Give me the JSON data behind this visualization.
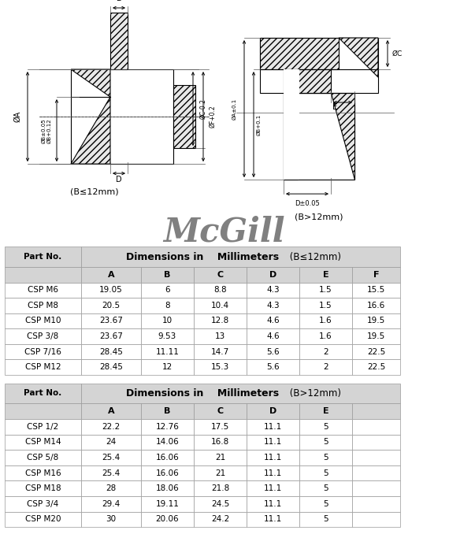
{
  "table1_header_cols": [
    "A",
    "B",
    "C",
    "D",
    "E",
    "F"
  ],
  "table1_title": "Dimensions in    Millimeters",
  "table1_title_suffix": "(B≤12mm)",
  "table1_rows": [
    [
      "CSP M6",
      "19.05",
      "6",
      "8.8",
      "4.3",
      "1.5",
      "15.5"
    ],
    [
      "CSP M8",
      "20.5",
      "8",
      "10.4",
      "4.3",
      "1.5",
      "16.6"
    ],
    [
      "CSP M10",
      "23.67",
      "10",
      "12.8",
      "4.6",
      "1.6",
      "19.5"
    ],
    [
      "CSP 3/8",
      "23.67",
      "9.53",
      "13",
      "4.6",
      "1.6",
      "19.5"
    ],
    [
      "CSP 7/16",
      "28.45",
      "11.11",
      "14.7",
      "5.6",
      "2",
      "22.5"
    ],
    [
      "CSP M12",
      "28.45",
      "12",
      "15.3",
      "5.6",
      "2",
      "22.5"
    ]
  ],
  "table2_header_cols": [
    "A",
    "B",
    "C",
    "D",
    "E",
    ""
  ],
  "table2_title": "Dimensions in    Millimeters",
  "table2_title_suffix": "(B>12mm)",
  "table2_rows": [
    [
      "CSP 1/2",
      "22.2",
      "12.76",
      "17.5",
      "11.1",
      "5",
      ""
    ],
    [
      "CSP M14",
      "24",
      "14.06",
      "16.8",
      "11.1",
      "5",
      ""
    ],
    [
      "CSP 5/8",
      "25.4",
      "16.06",
      "21",
      "11.1",
      "5",
      ""
    ],
    [
      "CSP M16",
      "25.4",
      "16.06",
      "21",
      "11.1",
      "5",
      ""
    ],
    [
      "CSP M18",
      "28",
      "18.06",
      "21.8",
      "11.1",
      "5",
      ""
    ],
    [
      "CSP 3/4",
      "29.4",
      "19.11",
      "24.5",
      "11.1",
      "5",
      ""
    ],
    [
      "CSP M20",
      "30",
      "20.06",
      "24.2",
      "11.1",
      "5",
      ""
    ]
  ],
  "header_bg": "#d4d4d4",
  "white_bg": "#ffffff",
  "border_color": "#999999",
  "label_b_leq": "(B≤12mm)",
  "label_b_gt": "(B>12mm)",
  "mcgill_color": "#808080"
}
